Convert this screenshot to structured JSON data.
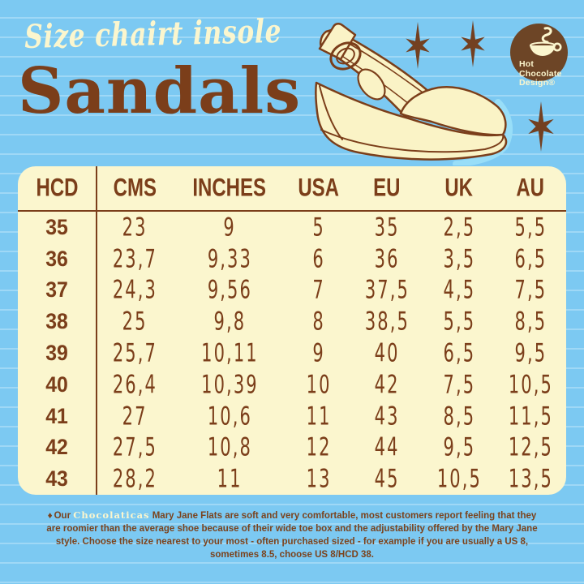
{
  "header": {
    "script_title": "Size chairt insole",
    "main_title": "Sandals"
  },
  "logo": {
    "lines": [
      "Hot",
      "Chocolate",
      "Design®"
    ],
    "icon": "hot-chocolate-cup-icon"
  },
  "decorations": {
    "stars": "three brown six-point starburst icons",
    "illustration": "cream wedge slingback sandal line drawing"
  },
  "table": {
    "columns": [
      "HCD",
      "CMS",
      "INCHES",
      "USA",
      "EU",
      "UK",
      "AU"
    ],
    "rows": [
      [
        "35",
        "23",
        "9",
        "5",
        "35",
        "2,5",
        "5,5"
      ],
      [
        "36",
        "23,7",
        "9,33",
        "6",
        "36",
        "3,5",
        "6,5"
      ],
      [
        "37",
        "24,3",
        "9,56",
        "7",
        "37,5",
        "4,5",
        "7,5"
      ],
      [
        "38",
        "25",
        "9,8",
        "8",
        "38,5",
        "5,5",
        "8,5"
      ],
      [
        "39",
        "25,7",
        "10,11",
        "9",
        "40",
        "6,5",
        "9,5"
      ],
      [
        "40",
        "26,4",
        "10,39",
        "10",
        "42",
        "7,5",
        "10,5"
      ],
      [
        "41",
        "27",
        "10,6",
        "11",
        "43",
        "8,5",
        "11,5"
      ],
      [
        "42",
        "27,5",
        "10,8",
        "12",
        "44",
        "9,5",
        "12,5"
      ],
      [
        "43",
        "28,2",
        "11",
        "13",
        "45",
        "10,5",
        "13,5"
      ]
    ]
  },
  "footer": {
    "bullet": "♦",
    "prefix": "Our ",
    "brand_word": "Chocolaticas",
    "body": " Mary Jane Flats are soft and very comfortable, most customers report feeling that they are roomier than the average shoe because of their wide toe box and the adjustability offered by the Mary Jane style. Choose the size nearest to your most - often  purchased sized - for example if you are usually a US 8, sometimes 8.5, choose US 8/HCD 38."
  },
  "colors": {
    "bg_blue": "#7CC9F2",
    "stripe_blue": "#9AD6F6",
    "cream": "#FBF6CE",
    "brown": "#7B3E1A",
    "logo_brown": "#6D4526",
    "footer_brown": "#7B431D",
    "shadow_cyan": "#98DEF8"
  }
}
